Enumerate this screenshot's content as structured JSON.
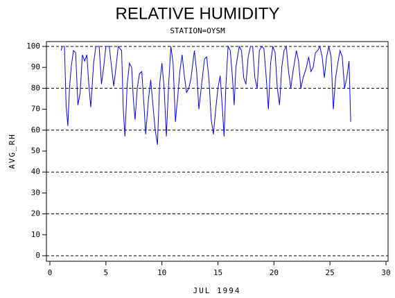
{
  "chart_data": {
    "type": "line",
    "title": "RELATIVE HUMIDITY",
    "subtitle": "STATION=OYSM",
    "x_label": "JUL 1994",
    "y_label": "AVG_RH",
    "x": [
      1.0,
      1.1,
      1.3,
      1.45,
      1.6,
      1.75,
      1.9,
      2.1,
      2.3,
      2.5,
      2.7,
      2.9,
      3.1,
      3.3,
      3.5,
      3.65,
      3.9,
      4.1,
      4.4,
      4.6,
      4.8,
      5.0,
      5.3,
      5.55,
      5.7,
      5.9,
      6.1,
      6.4,
      6.55,
      6.7,
      6.9,
      7.1,
      7.3,
      7.45,
      7.6,
      7.8,
      8.0,
      8.2,
      8.4,
      8.55,
      8.8,
      9.0,
      9.2,
      9.4,
      9.6,
      9.8,
      10.0,
      10.2,
      10.4,
      10.6,
      10.8,
      11.0,
      11.2,
      11.4,
      11.6,
      11.8,
      12.0,
      12.2,
      12.4,
      12.6,
      12.9,
      13.1,
      13.3,
      13.5,
      13.8,
      14.0,
      14.2,
      14.4,
      14.6,
      14.8,
      15.0,
      15.2,
      15.4,
      15.55,
      15.7,
      15.9,
      16.1,
      16.3,
      16.45,
      16.6,
      16.9,
      17.1,
      17.3,
      17.5,
      17.7,
      17.9,
      18.1,
      18.3,
      18.5,
      18.7,
      18.9,
      19.1,
      19.3,
      19.5,
      19.7,
      19.9,
      20.1,
      20.3,
      20.5,
      20.7,
      20.9,
      21.1,
      21.3,
      21.5,
      21.7,
      22.0,
      22.2,
      22.4,
      22.6,
      22.9,
      23.1,
      23.3,
      23.5,
      23.7,
      23.9,
      24.1,
      24.3,
      24.5,
      24.7,
      24.9,
      25.1,
      25.3,
      25.5,
      25.7,
      25.9,
      26.1,
      26.3,
      26.5,
      26.7,
      26.85
    ],
    "series": [
      {
        "name": "AVG_RH",
        "color": "#0000ff",
        "values": [
          98,
          100,
          100,
          72,
          62,
          80,
          90,
          98,
          97,
          72,
          78,
          96,
          93,
          96,
          80,
          71,
          92,
          100,
          100,
          82,
          90,
          100,
          100,
          88,
          81,
          90,
          100,
          98,
          70,
          57,
          82,
          92,
          90,
          75,
          65,
          80,
          87,
          88,
          72,
          58,
          75,
          84,
          72,
          60,
          53,
          82,
          92,
          80,
          57,
          82,
          100,
          92,
          64,
          75,
          88,
          96,
          86,
          78,
          80,
          85,
          98,
          88,
          70,
          80,
          94,
          95,
          84,
          65,
          58,
          70,
          80,
          86,
          70,
          57,
          80,
          100,
          98,
          85,
          72,
          90,
          100,
          98,
          85,
          82,
          95,
          100,
          100,
          85,
          80,
          98,
          100,
          99,
          86,
          70,
          92,
          100,
          97,
          80,
          72,
          90,
          98,
          100,
          88,
          80,
          88,
          98,
          93,
          80,
          85,
          90,
          95,
          88,
          90,
          97,
          98,
          100,
          95,
          85,
          95,
          100,
          95,
          70,
          85,
          92,
          98,
          95,
          80,
          85,
          93,
          64
        ]
      }
    ],
    "xlim": [
      0,
      30
    ],
    "xticks": [
      0,
      5,
      10,
      15,
      20,
      25,
      30
    ],
    "ylim": [
      0,
      100
    ],
    "yticks": [
      0,
      10,
      20,
      30,
      40,
      50,
      60,
      70,
      80,
      90,
      100
    ],
    "ygrid": [
      0,
      20,
      40,
      60,
      80,
      100
    ]
  }
}
